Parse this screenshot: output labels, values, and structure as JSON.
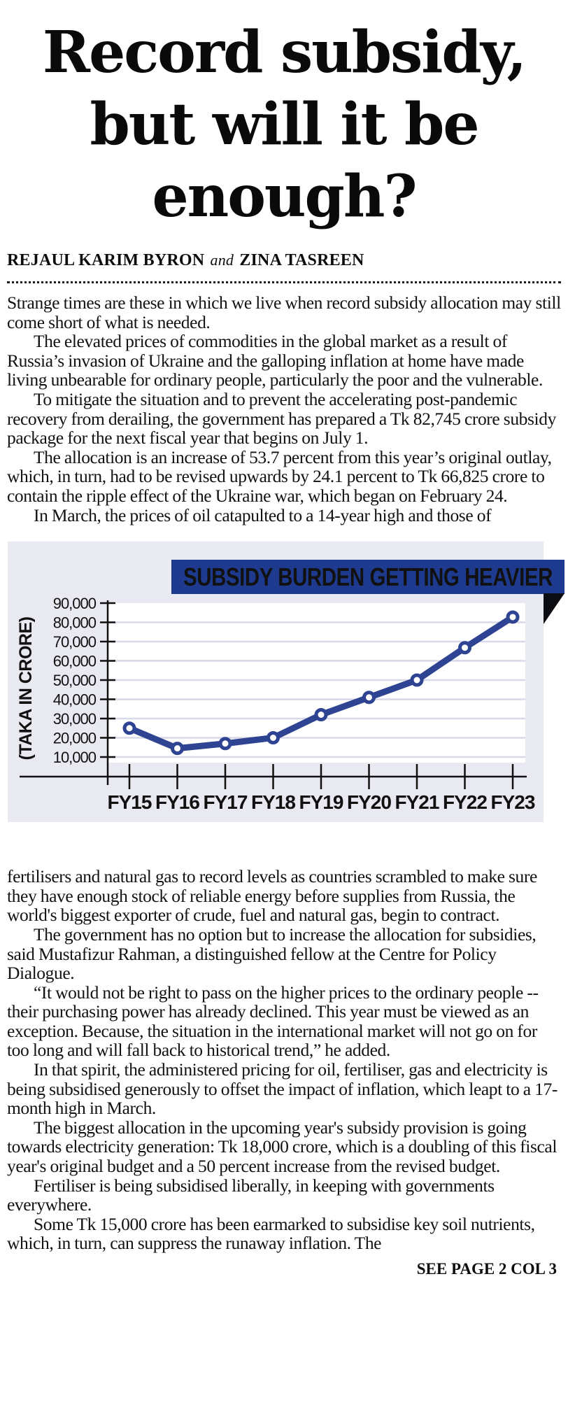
{
  "article": {
    "headline": "Record subsidy, but will it be enough?",
    "headline_lines": [
      "Record subsidy,",
      "but will it be",
      "enough?"
    ],
    "byline": {
      "author_1": "REJAUL KARIM BYRON",
      "connector": "and",
      "author_2": "ZINA TASREEN"
    },
    "paragraphs_before_chart": [
      "Strange times are these in which we live when record subsidy allocation may still come short of what is needed.",
      "The elevated prices of commodities in the global market as a result of Russia’s invasion of Ukraine and the galloping inflation at home have made living unbearable for ordinary people, particularly the poor and the vulnerable.",
      "To mitigate the situation and to prevent the accelerating post-pandemic recovery from derailing, the government has prepared a Tk 82,745 crore subsidy package for the next fiscal year that begins on July 1.",
      "The allocation is an increase of 53.7 percent from this year’s original outlay, which, in turn, had to be revised upwards by 24.1 percent to Tk 66,825 crore to contain the ripple effect of the Ukraine war, which began on February 24.",
      "In March, the prices of oil catapulted to a 14-year high and those of"
    ],
    "paragraphs_after_chart": [
      "fertilisers and natural gas to record levels as countries scrambled to make sure they have enough stock of reliable energy before supplies from Russia, the world's biggest exporter of crude, fuel and natural gas, begin to contract.",
      "The government has no option but to increase the allocation for subsidies, said Mustafizur Rahman, a distinguished fellow at the Centre for Policy Dialogue.",
      "“It would not be right to pass on the higher prices to the ordinary people -- their purchasing power has already declined. This year must be viewed as an exception. Because, the situation in the international market will not go on for too long and will fall back to historical trend,” he added.",
      "In that spirit, the administered pricing for oil, fertiliser, gas and electricity is being subsidised generously to offset the impact of inflation, which leapt to a 17-month high in March.",
      "The biggest allocation in the upcoming year's subsidy provision is going towards electricity generation: Tk 18,000 crore, which is a doubling of this fiscal year's original budget and a 50 percent increase from the revised budget.",
      "Fertiliser is being subsidised liberally, in keeping with governments everywhere.",
      "Some Tk 15,000 crore has been earmarked to subsidise key soil nutrients, which, in turn, can suppress the runaway inflation. The"
    ],
    "continuation_note": "SEE PAGE 2 COL 3"
  },
  "chart_data": {
    "type": "line",
    "title": "SUBSIDY BURDEN GETTING HEAVIER",
    "ylabel": "(TAKA IN CRORE)",
    "categories": [
      "FY15",
      "FY16",
      "FY17",
      "FY18",
      "FY19",
      "FY20",
      "FY21",
      "FY22",
      "FY23"
    ],
    "values": [
      25000,
      14500,
      17000,
      20000,
      32000,
      41000,
      50000,
      66825,
      82745
    ],
    "ylim": [
      10000,
      90000
    ],
    "ytick_labels": [
      "90,000",
      "80,000",
      "70,000",
      "60,000",
      "50,000",
      "40,000",
      "30,000",
      "20,000",
      "10,000"
    ],
    "grid": true,
    "legend_position": "none",
    "colors": {
      "line": "#2e4391",
      "marker_fill": "#ffffff",
      "banner": "#1e3a8f",
      "banner_text": "#ffffff",
      "panel_bg": "#e9e9f2",
      "grid": "#d8d9e8",
      "axis": "#111111",
      "fold": "#0c0c13"
    }
  }
}
